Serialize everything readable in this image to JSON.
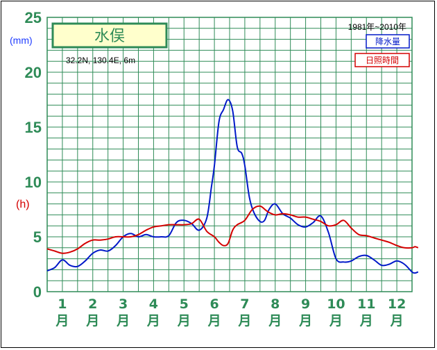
{
  "chart_data": {
    "type": "line",
    "title": "水俣",
    "coords": "32.2N, 130.4E, 6m",
    "period": "1981年~2010年",
    "unit_precip": "(mm)",
    "unit_sun": "(h)",
    "y_ticks": [
      "0",
      "5",
      "10",
      "15",
      "20",
      "25"
    ],
    "ylim": [
      0,
      25
    ],
    "xlim": [
      0.5,
      12.5
    ],
    "months": [
      {
        "n": "1",
        "c": "月"
      },
      {
        "n": "2",
        "c": "月"
      },
      {
        "n": "3",
        "c": "月"
      },
      {
        "n": "4",
        "c": "月"
      },
      {
        "n": "5",
        "c": "月"
      },
      {
        "n": "6",
        "c": "月"
      },
      {
        "n": "7",
        "c": "月"
      },
      {
        "n": "8",
        "c": "月"
      },
      {
        "n": "9",
        "c": "月"
      },
      {
        "n": "10",
        "c": "月"
      },
      {
        "n": "11",
        "c": "月"
      },
      {
        "n": "12",
        "c": "月"
      }
    ],
    "grid": true,
    "series": [
      {
        "name": "降水量",
        "color": "#0018c8",
        "points": [
          [
            0.5,
            1.9
          ],
          [
            0.75,
            2.2
          ],
          [
            1.0,
            2.9
          ],
          [
            1.25,
            2.4
          ],
          [
            1.5,
            2.3
          ],
          [
            1.75,
            2.8
          ],
          [
            2.0,
            3.5
          ],
          [
            2.25,
            3.8
          ],
          [
            2.5,
            3.7
          ],
          [
            2.75,
            4.2
          ],
          [
            3.0,
            5.0
          ],
          [
            3.25,
            5.3
          ],
          [
            3.5,
            5.0
          ],
          [
            3.75,
            5.2
          ],
          [
            4.0,
            5.0
          ],
          [
            4.25,
            5.0
          ],
          [
            4.5,
            5.1
          ],
          [
            4.75,
            6.3
          ],
          [
            5.0,
            6.5
          ],
          [
            5.25,
            6.2
          ],
          [
            5.5,
            5.6
          ],
          [
            5.75,
            6.7
          ],
          [
            5.9,
            9.5
          ],
          [
            6.0,
            11.5
          ],
          [
            6.15,
            15.5
          ],
          [
            6.3,
            16.6
          ],
          [
            6.45,
            17.5
          ],
          [
            6.6,
            16.5
          ],
          [
            6.75,
            13.2
          ],
          [
            6.9,
            12.6
          ],
          [
            7.0,
            11.5
          ],
          [
            7.15,
            8.6
          ],
          [
            7.3,
            7.2
          ],
          [
            7.5,
            6.4
          ],
          [
            7.65,
            6.5
          ],
          [
            7.8,
            7.5
          ],
          [
            8.0,
            8.0
          ],
          [
            8.25,
            7.1
          ],
          [
            8.5,
            6.7
          ],
          [
            8.75,
            6.1
          ],
          [
            9.0,
            5.9
          ],
          [
            9.25,
            6.3
          ],
          [
            9.5,
            6.9
          ],
          [
            9.75,
            5.4
          ],
          [
            10.0,
            3.0
          ],
          [
            10.25,
            2.7
          ],
          [
            10.5,
            2.8
          ],
          [
            10.75,
            3.2
          ],
          [
            11.0,
            3.3
          ],
          [
            11.25,
            2.9
          ],
          [
            11.5,
            2.4
          ],
          [
            11.75,
            2.5
          ],
          [
            12.0,
            2.8
          ],
          [
            12.25,
            2.5
          ],
          [
            12.5,
            1.8
          ],
          [
            12.6,
            1.7
          ],
          [
            12.7,
            1.8
          ]
        ]
      },
      {
        "name": "日照時間",
        "color": "#d40000",
        "points": [
          [
            0.5,
            3.9
          ],
          [
            0.75,
            3.7
          ],
          [
            1.0,
            3.5
          ],
          [
            1.25,
            3.6
          ],
          [
            1.5,
            3.9
          ],
          [
            1.75,
            4.4
          ],
          [
            2.0,
            4.7
          ],
          [
            2.25,
            4.7
          ],
          [
            2.5,
            4.8
          ],
          [
            2.75,
            5.0
          ],
          [
            3.0,
            5.0
          ],
          [
            3.25,
            5.0
          ],
          [
            3.5,
            5.2
          ],
          [
            3.75,
            5.6
          ],
          [
            4.0,
            5.9
          ],
          [
            4.25,
            6.0
          ],
          [
            4.5,
            6.1
          ],
          [
            4.75,
            6.1
          ],
          [
            5.0,
            6.1
          ],
          [
            5.25,
            6.2
          ],
          [
            5.5,
            6.6
          ],
          [
            5.75,
            5.5
          ],
          [
            6.0,
            5.0
          ],
          [
            6.15,
            4.5
          ],
          [
            6.3,
            4.2
          ],
          [
            6.45,
            4.4
          ],
          [
            6.6,
            5.6
          ],
          [
            6.75,
            6.1
          ],
          [
            7.0,
            6.5
          ],
          [
            7.25,
            7.5
          ],
          [
            7.5,
            7.8
          ],
          [
            7.75,
            7.3
          ],
          [
            8.0,
            7.0
          ],
          [
            8.25,
            7.1
          ],
          [
            8.5,
            7.0
          ],
          [
            8.75,
            6.8
          ],
          [
            9.0,
            6.8
          ],
          [
            9.25,
            6.6
          ],
          [
            9.5,
            6.4
          ],
          [
            9.75,
            6.0
          ],
          [
            10.0,
            6.1
          ],
          [
            10.25,
            6.5
          ],
          [
            10.5,
            5.8
          ],
          [
            10.75,
            5.2
          ],
          [
            11.0,
            5.1
          ],
          [
            11.25,
            4.9
          ],
          [
            11.5,
            4.7
          ],
          [
            11.75,
            4.5
          ],
          [
            12.0,
            4.2
          ],
          [
            12.25,
            4.0
          ],
          [
            12.5,
            4.0
          ],
          [
            12.6,
            4.1
          ],
          [
            12.7,
            4.0
          ]
        ]
      }
    ]
  }
}
